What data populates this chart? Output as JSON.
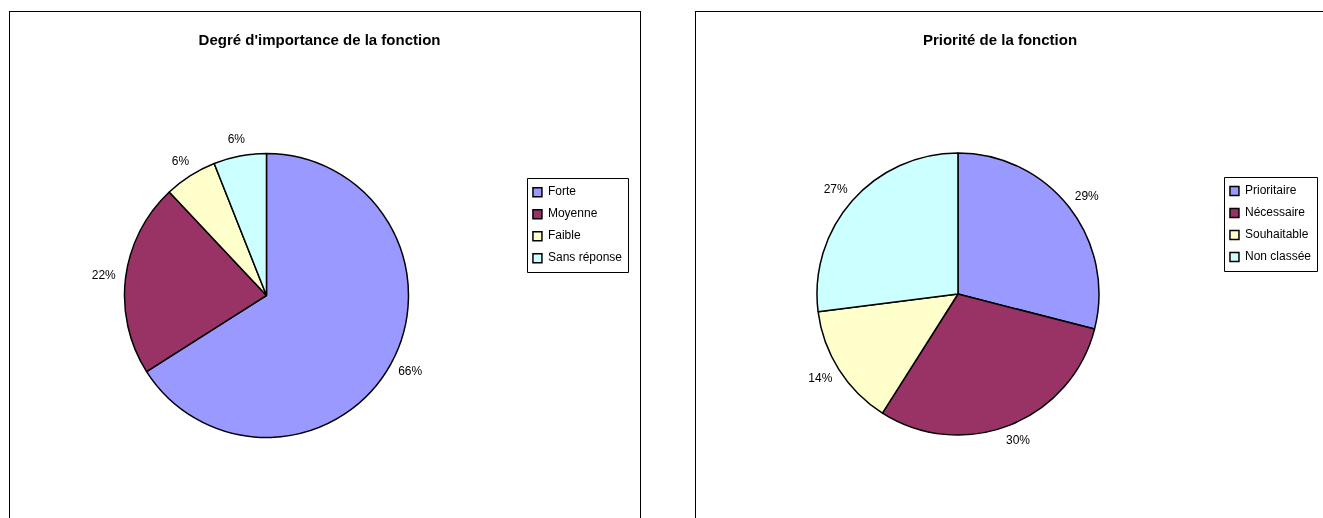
{
  "chart_data": [
    {
      "type": "pie",
      "title": "Degré d'importance de la fonction",
      "categories": [
        "Forte",
        "Moyenne",
        "Faible",
        "Sans réponse"
      ],
      "values": [
        66,
        22,
        6,
        6
      ],
      "colors": [
        "#9999ff",
        "#993366",
        "#ffffcc",
        "#ccffff"
      ],
      "value_labels": [
        "66%",
        "22%",
        "6%",
        "6%"
      ],
      "legend": "right"
    },
    {
      "type": "pie",
      "title": "Priorité de la fonction",
      "categories": [
        "Prioritaire",
        "Nécessaire",
        "Souhaitable",
        "Non classée"
      ],
      "values": [
        29,
        30,
        14,
        27
      ],
      "colors": [
        "#9999ff",
        "#993366",
        "#ffffcc",
        "#ccffff"
      ],
      "value_labels": [
        "29%",
        "30%",
        "14%",
        "27%"
      ],
      "legend": "right"
    }
  ]
}
